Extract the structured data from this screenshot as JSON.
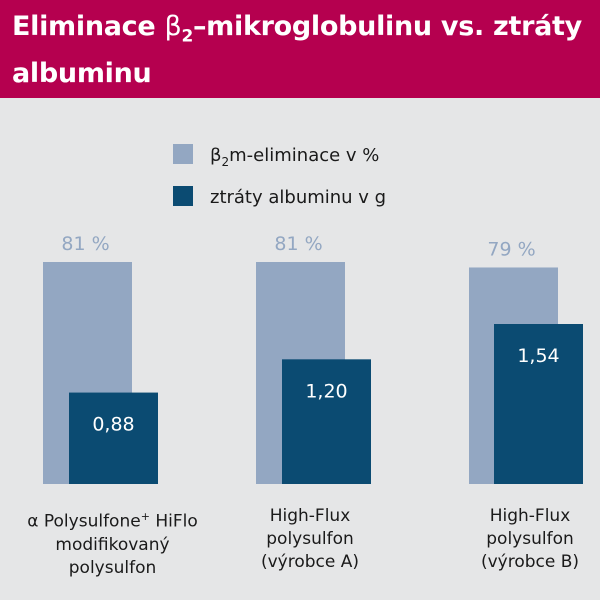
{
  "chart_data": {
    "type": "bar",
    "title_parts": {
      "pre": "Eliminace ",
      "beta": "β",
      "sub": "2",
      "post": "–mikroglobulinu vs. ztráty albuminu"
    },
    "legend": [
      {
        "beta": "β",
        "sub": "2",
        "text": "m-eliminace v %",
        "color": "#93a7c2"
      },
      {
        "text": "ztráty albuminu v g",
        "color": "#0b4b72"
      }
    ],
    "categories": [
      {
        "line1_prefix": "α",
        "line1": " Polysulfone",
        "line1_sup": "+",
        "line1_suffix": " HiFlo",
        "line2": "modifikovaný",
        "line3": "polysulfon"
      },
      {
        "line1": "High-Flux",
        "line2": "polysulfon",
        "line3": "(výrobce A)"
      },
      {
        "line1": "High-Flux",
        "line2": "polysulfon",
        "line3": "(výrobce B)"
      }
    ],
    "series": [
      {
        "name": "β2m-eliminace v %",
        "values": [
          81,
          81,
          79
        ],
        "labels": [
          "81 %",
          "81 %",
          "79 %"
        ],
        "color": "#93a7c2"
      },
      {
        "name": "ztráty albuminu v g",
        "values": [
          0.88,
          1.2,
          1.54
        ],
        "labels": [
          "0,88",
          "1,20",
          "1,54"
        ],
        "color": "#0b4b72"
      }
    ],
    "label_color_light": "#93a7c2",
    "label_color_dark": "#ffffff"
  }
}
